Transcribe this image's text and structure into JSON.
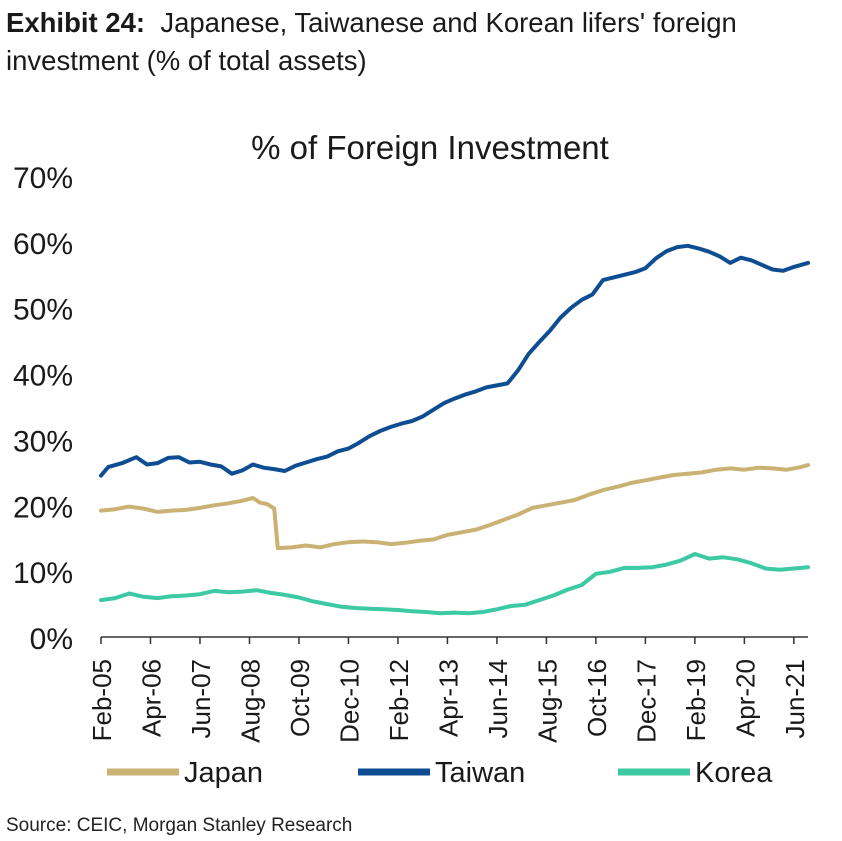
{
  "header": {
    "exhibit_label": "Exhibit 24:",
    "title": "Japanese, Taiwanese and Korean lifers' foreign investment (% of total assets)"
  },
  "footer": {
    "source": "Source: CEIC, Morgan Stanley Research"
  },
  "chart_data": {
    "type": "line",
    "title": "% of Foreign Investment",
    "xlabel": "",
    "ylabel": "",
    "ylim": [
      0,
      70
    ],
    "yticks": [
      "0%",
      "10%",
      "20%",
      "30%",
      "40%",
      "50%",
      "60%",
      "70%"
    ],
    "x_range": [
      "2005-02",
      "2021-10"
    ],
    "x_ticks": [
      "Feb-05",
      "Apr-06",
      "Jun-07",
      "Aug-08",
      "Oct-09",
      "Dec-10",
      "Feb-12",
      "Apr-13",
      "Jun-14",
      "Aug-15",
      "Oct-16",
      "Dec-17",
      "Feb-19",
      "Apr-20",
      "Jun-21"
    ],
    "grid": false,
    "legend_position": "bottom",
    "series": [
      {
        "name": "Japan",
        "color": "#c9b273",
        "points": [
          [
            "2005-02",
            19.2
          ],
          [
            "2005-06",
            19.4
          ],
          [
            "2005-10",
            19.8
          ],
          [
            "2006-02",
            19.5
          ],
          [
            "2006-06",
            19.0
          ],
          [
            "2006-10",
            19.2
          ],
          [
            "2007-02",
            19.3
          ],
          [
            "2007-06",
            19.6
          ],
          [
            "2007-10",
            20.0
          ],
          [
            "2008-02",
            20.3
          ],
          [
            "2008-06",
            20.7
          ],
          [
            "2008-09",
            21.1
          ],
          [
            "2008-11",
            20.4
          ],
          [
            "2009-01",
            20.2
          ],
          [
            "2009-03",
            19.5
          ],
          [
            "2009-04",
            13.5
          ],
          [
            "2009-08",
            13.6
          ],
          [
            "2009-12",
            13.9
          ],
          [
            "2010-04",
            13.6
          ],
          [
            "2010-08",
            14.1
          ],
          [
            "2010-12",
            14.4
          ],
          [
            "2011-04",
            14.5
          ],
          [
            "2011-08",
            14.4
          ],
          [
            "2011-12",
            14.1
          ],
          [
            "2012-04",
            14.3
          ],
          [
            "2012-08",
            14.6
          ],
          [
            "2012-12",
            14.8
          ],
          [
            "2013-04",
            15.5
          ],
          [
            "2013-08",
            15.9
          ],
          [
            "2013-12",
            16.3
          ],
          [
            "2014-04",
            17.0
          ],
          [
            "2014-08",
            17.8
          ],
          [
            "2014-12",
            18.6
          ],
          [
            "2015-04",
            19.6
          ],
          [
            "2015-08",
            20.0
          ],
          [
            "2015-12",
            20.4
          ],
          [
            "2016-04",
            20.8
          ],
          [
            "2016-08",
            21.6
          ],
          [
            "2016-12",
            22.3
          ],
          [
            "2017-04",
            22.8
          ],
          [
            "2017-08",
            23.4
          ],
          [
            "2017-12",
            23.8
          ],
          [
            "2018-04",
            24.2
          ],
          [
            "2018-08",
            24.6
          ],
          [
            "2018-12",
            24.8
          ],
          [
            "2019-04",
            25.0
          ],
          [
            "2019-08",
            25.4
          ],
          [
            "2019-12",
            25.6
          ],
          [
            "2020-04",
            25.4
          ],
          [
            "2020-08",
            25.7
          ],
          [
            "2020-12",
            25.6
          ],
          [
            "2021-04",
            25.4
          ],
          [
            "2021-08",
            25.8
          ],
          [
            "2021-10",
            26.1
          ]
        ]
      },
      {
        "name": "Taiwan",
        "color": "#0e4d92",
        "points": [
          [
            "2005-02",
            24.5
          ],
          [
            "2005-04",
            25.8
          ],
          [
            "2005-08",
            26.4
          ],
          [
            "2005-12",
            27.3
          ],
          [
            "2006-03",
            26.2
          ],
          [
            "2006-06",
            26.4
          ],
          [
            "2006-09",
            27.2
          ],
          [
            "2006-12",
            27.3
          ],
          [
            "2007-03",
            26.5
          ],
          [
            "2007-06",
            26.6
          ],
          [
            "2007-09",
            26.2
          ],
          [
            "2007-12",
            25.9
          ],
          [
            "2008-03",
            24.8
          ],
          [
            "2008-06",
            25.3
          ],
          [
            "2008-09",
            26.2
          ],
          [
            "2008-12",
            25.7
          ],
          [
            "2009-03",
            25.5
          ],
          [
            "2009-06",
            25.2
          ],
          [
            "2009-09",
            26.0
          ],
          [
            "2009-12",
            26.5
          ],
          [
            "2010-03",
            27.0
          ],
          [
            "2010-06",
            27.4
          ],
          [
            "2010-09",
            28.2
          ],
          [
            "2010-12",
            28.6
          ],
          [
            "2011-03",
            29.5
          ],
          [
            "2011-06",
            30.5
          ],
          [
            "2011-09",
            31.3
          ],
          [
            "2011-12",
            31.9
          ],
          [
            "2012-03",
            32.4
          ],
          [
            "2012-06",
            32.8
          ],
          [
            "2012-09",
            33.5
          ],
          [
            "2012-12",
            34.5
          ],
          [
            "2013-03",
            35.5
          ],
          [
            "2013-06",
            36.2
          ],
          [
            "2013-09",
            36.8
          ],
          [
            "2013-12",
            37.3
          ],
          [
            "2014-03",
            37.9
          ],
          [
            "2014-06",
            38.2
          ],
          [
            "2014-09",
            38.5
          ],
          [
            "2014-12",
            40.5
          ],
          [
            "2015-03",
            43.0
          ],
          [
            "2015-06",
            44.8
          ],
          [
            "2015-09",
            46.5
          ],
          [
            "2015-12",
            48.5
          ],
          [
            "2016-03",
            50.0
          ],
          [
            "2016-06",
            51.2
          ],
          [
            "2016-09",
            52.0
          ],
          [
            "2016-12",
            54.2
          ],
          [
            "2017-03",
            54.6
          ],
          [
            "2017-06",
            55.0
          ],
          [
            "2017-09",
            55.4
          ],
          [
            "2017-12",
            56.0
          ],
          [
            "2018-03",
            57.5
          ],
          [
            "2018-06",
            58.6
          ],
          [
            "2018-09",
            59.2
          ],
          [
            "2018-12",
            59.4
          ],
          [
            "2019-03",
            59.0
          ],
          [
            "2019-06",
            58.5
          ],
          [
            "2019-09",
            57.8
          ],
          [
            "2019-12",
            56.8
          ],
          [
            "2020-03",
            57.6
          ],
          [
            "2020-06",
            57.2
          ],
          [
            "2020-09",
            56.5
          ],
          [
            "2020-12",
            55.8
          ],
          [
            "2021-03",
            55.6
          ],
          [
            "2021-06",
            56.2
          ],
          [
            "2021-10",
            56.8
          ]
        ]
      },
      {
        "name": "Korea",
        "color": "#3cc9a3",
        "points": [
          [
            "2005-02",
            5.6
          ],
          [
            "2005-06",
            5.9
          ],
          [
            "2005-10",
            6.6
          ],
          [
            "2006-02",
            6.1
          ],
          [
            "2006-06",
            5.9
          ],
          [
            "2006-10",
            6.2
          ],
          [
            "2007-02",
            6.3
          ],
          [
            "2007-06",
            6.5
          ],
          [
            "2007-10",
            7.0
          ],
          [
            "2008-02",
            6.8
          ],
          [
            "2008-06",
            6.9
          ],
          [
            "2008-10",
            7.1
          ],
          [
            "2009-02",
            6.7
          ],
          [
            "2009-06",
            6.4
          ],
          [
            "2009-10",
            6.0
          ],
          [
            "2010-02",
            5.4
          ],
          [
            "2010-06",
            5.0
          ],
          [
            "2010-10",
            4.6
          ],
          [
            "2011-02",
            4.4
          ],
          [
            "2011-06",
            4.3
          ],
          [
            "2011-10",
            4.2
          ],
          [
            "2012-02",
            4.1
          ],
          [
            "2012-06",
            3.9
          ],
          [
            "2012-10",
            3.8
          ],
          [
            "2013-02",
            3.6
          ],
          [
            "2013-06",
            3.7
          ],
          [
            "2013-10",
            3.6
          ],
          [
            "2014-02",
            3.8
          ],
          [
            "2014-06",
            4.2
          ],
          [
            "2014-10",
            4.7
          ],
          [
            "2015-02",
            4.9
          ],
          [
            "2015-06",
            5.6
          ],
          [
            "2015-10",
            6.3
          ],
          [
            "2016-02",
            7.2
          ],
          [
            "2016-06",
            7.9
          ],
          [
            "2016-10",
            9.6
          ],
          [
            "2017-02",
            9.9
          ],
          [
            "2017-06",
            10.5
          ],
          [
            "2017-10",
            10.5
          ],
          [
            "2018-02",
            10.6
          ],
          [
            "2018-06",
            11.0
          ],
          [
            "2018-10",
            11.6
          ],
          [
            "2019-02",
            12.6
          ],
          [
            "2019-06",
            11.9
          ],
          [
            "2019-10",
            12.1
          ],
          [
            "2020-02",
            11.8
          ],
          [
            "2020-06",
            11.2
          ],
          [
            "2020-10",
            10.4
          ],
          [
            "2021-02",
            10.2
          ],
          [
            "2021-06",
            10.4
          ],
          [
            "2021-10",
            10.6
          ]
        ]
      }
    ]
  }
}
